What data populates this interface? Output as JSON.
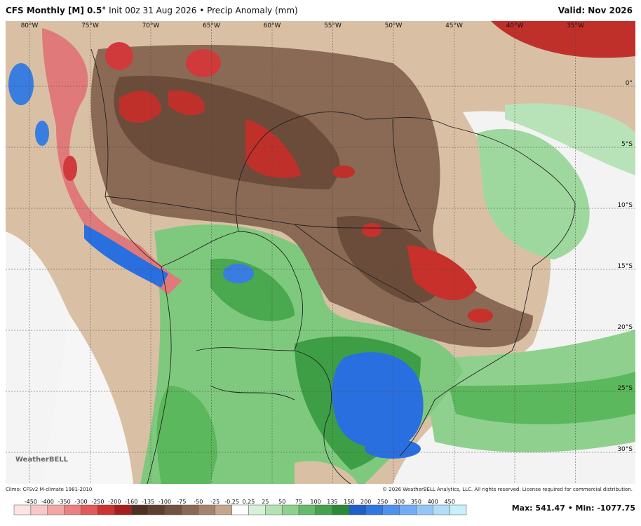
{
  "header": {
    "model": "CFS Monthly [M] 0.5°",
    "description": "Init 00z 31 Aug 2026 • Precip Anomaly (mm)",
    "valid": "Valid: Nov 2026"
  },
  "map": {
    "lon_labels": [
      "80°W",
      "75°W",
      "70°W",
      "65°W",
      "60°W",
      "55°W",
      "50°W",
      "45°W",
      "40°W",
      "35°W"
    ],
    "lat_labels": [
      "0°",
      "5°S",
      "10°S",
      "15°S",
      "20°S",
      "25°S",
      "30°S"
    ],
    "logo": "WeatherBELL"
  },
  "footer": {
    "climo": "Climo: CFSv2 M-climate 1981-2010",
    "copyright": "© 2026 WeatherBELL Analytics, LLC. All rights reserved. License required for commercial distribution.",
    "max_min": "Max: 541.47 • Min: -1077.75"
  },
  "colorbar": {
    "labels": [
      "-450",
      "-400",
      "-350",
      "-300",
      "-250",
      "-200",
      "-160",
      "-135",
      "-100",
      "-75",
      "-50",
      "-25",
      "-0.25",
      "0.25",
      "25",
      "50",
      "75",
      "100",
      "135",
      "150",
      "200",
      "250",
      "300",
      "350",
      "400",
      "450"
    ]
  }
}
